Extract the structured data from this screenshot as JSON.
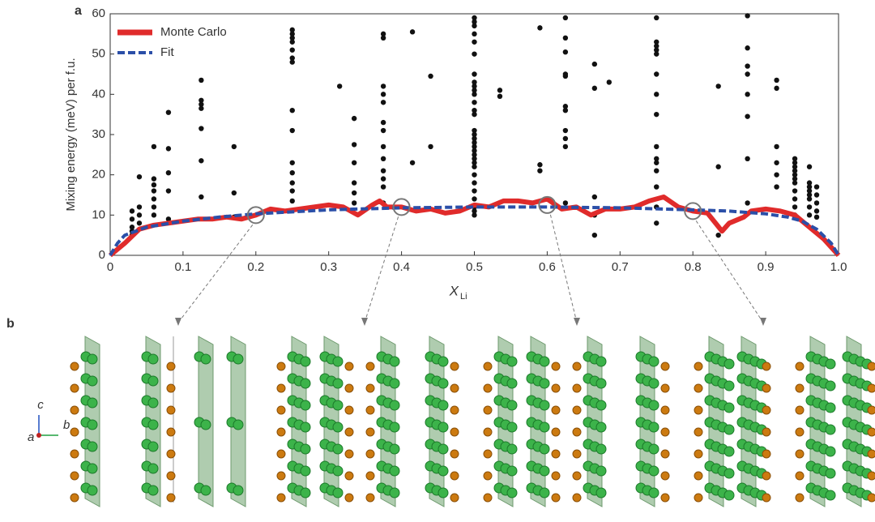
{
  "chart_data": {
    "type": "line",
    "panel_label": "a",
    "ylabel": "Mixing energy (meV) per f.u.",
    "xlabel": "X",
    "xlabel_sub": "Li",
    "xlim": [
      0,
      1
    ],
    "ylim": [
      0,
      60
    ],
    "xticks": [
      0,
      0.1,
      0.2,
      0.3,
      0.4,
      0.5,
      0.6,
      0.7,
      0.8,
      0.9,
      {
        "value": 1,
        "label": "1.0"
      }
    ],
    "yticks": [
      0,
      10,
      20,
      30,
      40,
      50,
      60
    ],
    "legend": "upper left",
    "series": [
      {
        "name": "Monte Carlo",
        "color": "#e02b2b",
        "x": [
          0,
          0.02,
          0.04,
          0.06,
          0.08,
          0.1,
          0.12,
          0.14,
          0.16,
          0.18,
          0.2,
          0.22,
          0.24,
          0.26,
          0.28,
          0.3,
          0.32,
          0.34,
          0.36,
          0.37,
          0.38,
          0.4,
          0.42,
          0.44,
          0.46,
          0.48,
          0.5,
          0.52,
          0.54,
          0.56,
          0.58,
          0.6,
          0.62,
          0.64,
          0.66,
          0.68,
          0.7,
          0.72,
          0.74,
          0.76,
          0.78,
          0.8,
          0.82,
          0.84,
          0.85,
          0.87,
          0.88,
          0.9,
          0.92,
          0.94,
          0.96,
          0.98,
          1
        ],
        "values": [
          0,
          3,
          6.5,
          7.5,
          8,
          8.5,
          9,
          9,
          9.5,
          9,
          10,
          11.5,
          11,
          11.5,
          12,
          12.5,
          12,
          10,
          12.5,
          13.5,
          12,
          12,
          11,
          11.5,
          10.5,
          11,
          12.5,
          12,
          13.5,
          13.5,
          13,
          14,
          11.5,
          12,
          10,
          11.5,
          11.5,
          12,
          13.5,
          14.5,
          12,
          11,
          10.5,
          6,
          8,
          9.5,
          11,
          11.5,
          11,
          10,
          7,
          4,
          0
        ]
      },
      {
        "name": "Fit",
        "color": "#2b4fa8",
        "dashed": true,
        "x": [
          0,
          0.01,
          0.02,
          0.05,
          0.1,
          0.15,
          0.2,
          0.3,
          0.4,
          0.5,
          0.6,
          0.7,
          0.8,
          0.85,
          0.9,
          0.93,
          0.95,
          0.97,
          0.99,
          1
        ],
        "values": [
          0,
          3,
          5,
          7,
          8.5,
          9.5,
          10.3,
          11.3,
          11.8,
          12,
          12,
          11.8,
          11.3,
          11,
          10.3,
          9.5,
          8.5,
          6.5,
          3,
          0
        ]
      }
    ],
    "scatter_color": "#111111",
    "scatter": [
      {
        "x": 0.03,
        "y": [
          5,
          6,
          7,
          9,
          11
        ]
      },
      {
        "x": 0.04,
        "y": [
          8,
          10,
          12,
          19.5
        ]
      },
      {
        "x": 0.06,
        "y": [
          10,
          12,
          14,
          16,
          17.5,
          19,
          27
        ]
      },
      {
        "x": 0.08,
        "y": [
          9,
          16,
          20.5,
          26.5,
          35.5
        ]
      },
      {
        "x": 0.125,
        "y": [
          14.5,
          23.5,
          31.5,
          36.5,
          37.5,
          38.5,
          43.5
        ]
      },
      {
        "x": 0.17,
        "y": [
          9.5,
          15.5,
          27
        ]
      },
      {
        "x": 0.25,
        "y": [
          13.5,
          16,
          18,
          20.5,
          23,
          31,
          36,
          48,
          49,
          51,
          53,
          54,
          55,
          56
        ]
      },
      {
        "x": 0.315,
        "y": [
          42
        ]
      },
      {
        "x": 0.335,
        "y": [
          13,
          15.5,
          18,
          23,
          27.5,
          34
        ]
      },
      {
        "x": 0.375,
        "y": [
          13,
          17,
          19,
          21,
          24,
          27,
          31,
          33,
          38,
          40,
          42,
          54,
          55
        ]
      },
      {
        "x": 0.415,
        "y": [
          23,
          55.5
        ]
      },
      {
        "x": 0.44,
        "y": [
          27,
          44.5
        ]
      },
      {
        "x": 0.5,
        "y": [
          10,
          11,
          12,
          14,
          16,
          18,
          20,
          22,
          23,
          24,
          25,
          26,
          27,
          28,
          29,
          30,
          31,
          35,
          36,
          38,
          40,
          41,
          42,
          43,
          45,
          50,
          53,
          55,
          57,
          58,
          59
        ]
      },
      {
        "x": 0.535,
        "y": [
          39.5,
          41
        ]
      },
      {
        "x": 0.59,
        "y": [
          21,
          22.5,
          56.5
        ]
      },
      {
        "x": 0.625,
        "y": [
          13,
          27,
          29,
          31,
          36,
          37,
          44.5,
          45,
          50.5,
          54,
          59
        ]
      },
      {
        "x": 0.665,
        "y": [
          5,
          10,
          14.5,
          41.5,
          47.5
        ]
      },
      {
        "x": 0.685,
        "y": [
          43
        ]
      },
      {
        "x": 0.75,
        "y": [
          8,
          12,
          17,
          21,
          23,
          24,
          27,
          35,
          40,
          45,
          50,
          51,
          52,
          53,
          59
        ]
      },
      {
        "x": 0.835,
        "y": [
          5,
          22,
          42
        ]
      },
      {
        "x": 0.875,
        "y": [
          13,
          24,
          34.5,
          40,
          45,
          47,
          51.5,
          59.5
        ]
      },
      {
        "x": 0.915,
        "y": [
          17,
          20,
          23,
          27,
          41.5,
          43.5
        ]
      },
      {
        "x": 0.94,
        "y": [
          10,
          12,
          14,
          16,
          18,
          19,
          20,
          21,
          22,
          23,
          24
        ]
      },
      {
        "x": 0.96,
        "y": [
          10,
          12,
          14,
          15,
          16,
          17,
          18,
          22
        ]
      },
      {
        "x": 0.97,
        "y": [
          9.5,
          11,
          13,
          15,
          17
        ]
      }
    ],
    "highlights": {
      "x": [
        0.2,
        0.4,
        0.6,
        0.8
      ],
      "y": [
        10,
        12,
        12.5,
        11
      ]
    }
  },
  "panel_b": {
    "label": "b",
    "axes": [
      "c",
      "b",
      "a"
    ]
  }
}
